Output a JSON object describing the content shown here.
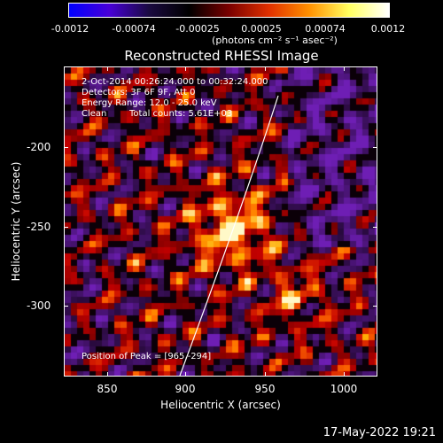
{
  "colorbar": {
    "ticks": [
      "-0.0012",
      "-0.00074",
      "-0.00025",
      "0.00025",
      "0.00074",
      "0.0012"
    ],
    "unit_label": "(photons cm⁻² s⁻¹ asec⁻²)",
    "gradient_colors": [
      "#0000ff",
      "#4800d8",
      "#1a0a40",
      "#000000",
      "#7a0000",
      "#e03000",
      "#ff9000",
      "#ffff60",
      "#ffffff"
    ]
  },
  "title": "Reconstructed RHESSI Image",
  "annotations": {
    "time_range": "2-Oct-2014 00:26:24.000 to 00:32:24.000",
    "detectors": "Detectors: 3F 6F 9F, Att 0",
    "energy_range": "Energy Range: 12.0 - 25.0 keV",
    "algorithm": "Clean",
    "total_counts": "Total counts: 5.61E+03",
    "peak_position": "Position of Peak = [965,-294]"
  },
  "x_axis": {
    "label": "Heliocentric X (arcsec)",
    "ticks": [
      "850",
      "900",
      "950",
      "1000"
    ]
  },
  "y_axis": {
    "label": "Heliocentric Y (arcsec)",
    "ticks": [
      "-200",
      "-250",
      "-300"
    ]
  },
  "footer_date": "17-May-2022 19:21"
}
